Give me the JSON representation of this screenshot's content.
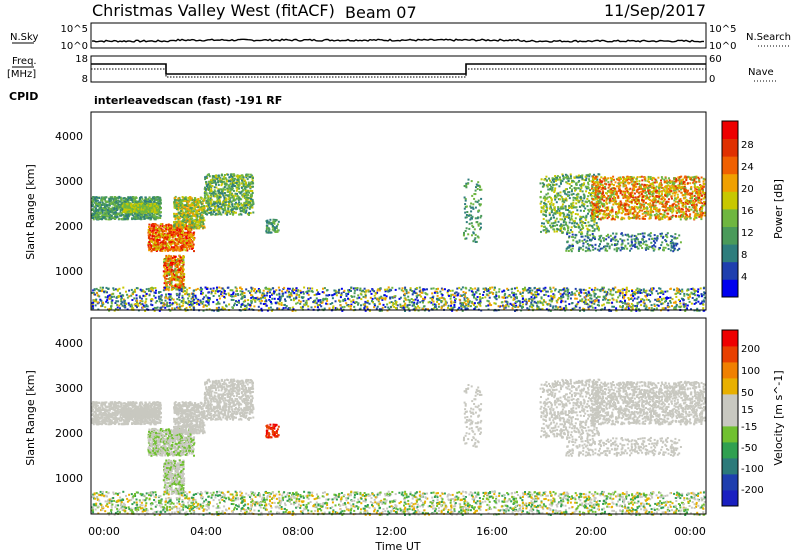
{
  "header": {
    "station": "Christmas Valley West (fitACF)",
    "beam": "Beam 07",
    "date": "11/Sep/2017"
  },
  "left_labels": {
    "nsky": "N.Sky",
    "freq_top": "Freq.",
    "freq_unit": "[MHz]",
    "cpid": "CPID"
  },
  "right_labels": {
    "nsearch": "N.Search",
    "nave": "Nave"
  },
  "cpid_text": "interleavedscan (fast) -191 RF",
  "noise_ticks": {
    "left": [
      "10^5",
      "10^0"
    ],
    "right": [
      "10^5",
      "10^0"
    ]
  },
  "freq_ticks": {
    "left": [
      "18",
      "8"
    ],
    "right": [
      "60",
      "0"
    ]
  },
  "colors": {
    "power": [
      "#0000ee",
      "#1f3fae",
      "#2e7d7d",
      "#4a9a5a",
      "#6fb640",
      "#c8c800",
      "#f0a000",
      "#f06000",
      "#e03000",
      "#ee0000"
    ],
    "velocity": [
      "#ee0000",
      "#e84000",
      "#f08000",
      "#e8b000",
      "#c8c8c0",
      "#c8c8c0",
      "#70c030",
      "#30a050",
      "#2c7a7a",
      "#1f3fae",
      "#1a20c0"
    ]
  },
  "chart_data": [
    {
      "type": "heatmap",
      "name": "power",
      "ylabel": "Slant Range [km]",
      "ylim": [
        180,
        4550
      ],
      "yticks": [
        "1000",
        "2000",
        "3000",
        "4000"
      ],
      "colorbar": {
        "label": "Power [dB]",
        "range": [
          0,
          32
        ],
        "ticks": [
          "4",
          "8",
          "12",
          "16",
          "20",
          "24",
          "28"
        ]
      }
    },
    {
      "type": "heatmap",
      "name": "velocity",
      "ylabel": "Slant Range [km]",
      "ylim": [
        180,
        4550
      ],
      "yticks": [
        "1000",
        "2000",
        "3000",
        "4000"
      ],
      "xlabel": "Time UT",
      "xticks": [
        "00:00",
        "04:00",
        "08:00",
        "12:00",
        "16:00",
        "20:00",
        "00:00"
      ],
      "xlim_hours": [
        0,
        24
      ],
      "colorbar": {
        "label": "Velocity [m s^-1]",
        "ticks": [
          "200",
          "100",
          "50",
          "15",
          "-15",
          "-50",
          "-100",
          "-200"
        ]
      }
    }
  ]
}
